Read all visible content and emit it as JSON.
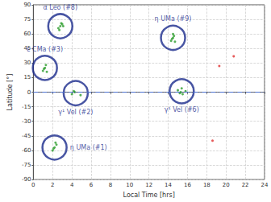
{
  "chart_data": {
    "type": "scatter",
    "x_label": "Local Time [hrs]",
    "y_label": "Latitude [°]",
    "xlim": [
      0,
      24
    ],
    "xticks": [
      0,
      2,
      4,
      6,
      8,
      10,
      12,
      14,
      16,
      18,
      20,
      22,
      24
    ],
    "ylim": [
      -90,
      90
    ],
    "yticks": [
      -90,
      -75,
      -60,
      -45,
      -30,
      -15,
      0,
      15,
      30,
      45,
      60,
      75,
      90
    ],
    "grid": true,
    "series": [
      {
        "color": "#2e9e2e",
        "marker": "circle",
        "values": [
          [
            2.6,
            66
          ],
          [
            2.8,
            68
          ],
          [
            3.0,
            70
          ],
          [
            2.7,
            64
          ],
          [
            3.1,
            68
          ],
          [
            2.9,
            71
          ],
          [
            14.3,
            53
          ],
          [
            14.5,
            56
          ],
          [
            14.6,
            58
          ],
          [
            14.4,
            55
          ],
          [
            14.7,
            52
          ],
          [
            14.5,
            60
          ],
          [
            1.0,
            22
          ],
          [
            1.2,
            25
          ],
          [
            1.3,
            28
          ],
          [
            1.1,
            24
          ],
          [
            1.4,
            21
          ],
          [
            4.0,
            -2
          ],
          [
            4.3,
            0
          ],
          [
            4.9,
            -3
          ],
          [
            4.2,
            1
          ],
          [
            15.0,
            2
          ],
          [
            15.3,
            0
          ],
          [
            15.5,
            -2
          ],
          [
            15.4,
            4
          ],
          [
            15.8,
            1
          ],
          [
            15.2,
            -1
          ],
          [
            2.0,
            -60
          ],
          [
            2.2,
            -57
          ],
          [
            2.4,
            -54
          ],
          [
            2.1,
            -58
          ],
          [
            2.3,
            -52
          ]
        ]
      },
      {
        "color": "#e03030",
        "marker": "circle",
        "values": [
          [
            19.3,
            27
          ],
          [
            20.8,
            37
          ],
          [
            18.6,
            -50
          ]
        ]
      }
    ],
    "reference_lines": [
      {
        "y": 0,
        "color": "#4a6fd0",
        "line_style": "dashdot"
      }
    ],
    "annotations": [
      {
        "text": "α Leo (#8)",
        "x": 2.8,
        "y": 68,
        "position": "top"
      },
      {
        "text": "η UMa (#9)",
        "x": 14.5,
        "y": 56,
        "position": "top"
      },
      {
        "text": "ε CMa (#3)",
        "x": 1.2,
        "y": 25,
        "position": "top"
      },
      {
        "text": "γ¹ Vel (#2)",
        "x": 4.4,
        "y": -1,
        "position": "bottom"
      },
      {
        "text": "γ¹ Vel (#6)",
        "x": 15.4,
        "y": 1,
        "position": "bottom"
      },
      {
        "text": "η UMa (#1)",
        "x": 2.2,
        "y": -57,
        "position": "right"
      }
    ],
    "annotation_color": "#1a2a8c"
  }
}
